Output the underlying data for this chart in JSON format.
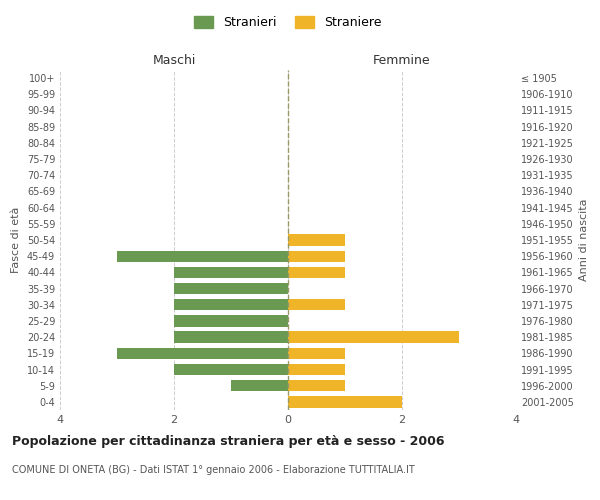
{
  "age_groups": [
    "100+",
    "95-99",
    "90-94",
    "85-89",
    "80-84",
    "75-79",
    "70-74",
    "65-69",
    "60-64",
    "55-59",
    "50-54",
    "45-49",
    "40-44",
    "35-39",
    "30-34",
    "25-29",
    "20-24",
    "15-19",
    "10-14",
    "5-9",
    "0-4"
  ],
  "birth_years": [
    "≤ 1905",
    "1906-1910",
    "1911-1915",
    "1916-1920",
    "1921-1925",
    "1926-1930",
    "1931-1935",
    "1936-1940",
    "1941-1945",
    "1946-1950",
    "1951-1955",
    "1956-1960",
    "1961-1965",
    "1966-1970",
    "1971-1975",
    "1976-1980",
    "1981-1985",
    "1986-1990",
    "1991-1995",
    "1996-2000",
    "2001-2005"
  ],
  "maschi": [
    0,
    0,
    0,
    0,
    0,
    0,
    0,
    0,
    0,
    0,
    0,
    -3,
    -2,
    -2,
    -2,
    -2,
    -2,
    -3,
    -2,
    -1,
    0
  ],
  "femmine": [
    0,
    0,
    0,
    0,
    0,
    0,
    0,
    0,
    0,
    0,
    1,
    1,
    1,
    0,
    1,
    0,
    3,
    1,
    1,
    1,
    2
  ],
  "color_maschi": "#6a9a52",
  "color_femmine": "#f0b429",
  "title": "Popolazione per cittadinanza straniera per età e sesso - 2006",
  "subtitle": "COMUNE DI ONETA (BG) - Dati ISTAT 1° gennaio 2006 - Elaborazione TUTTITALIA.IT",
  "xlabel_left": "Maschi",
  "xlabel_right": "Femmine",
  "ylabel_left": "Fasce di età",
  "ylabel_right": "Anni di nascita",
  "legend_maschi": "Stranieri",
  "legend_femmine": "Straniere",
  "xlim": [
    -4,
    4
  ],
  "xticks": [
    -4,
    -2,
    0,
    2,
    4
  ],
  "xticklabels": [
    "4",
    "2",
    "0",
    "2",
    "4"
  ],
  "background_color": "#ffffff",
  "grid_color": "#cccccc"
}
